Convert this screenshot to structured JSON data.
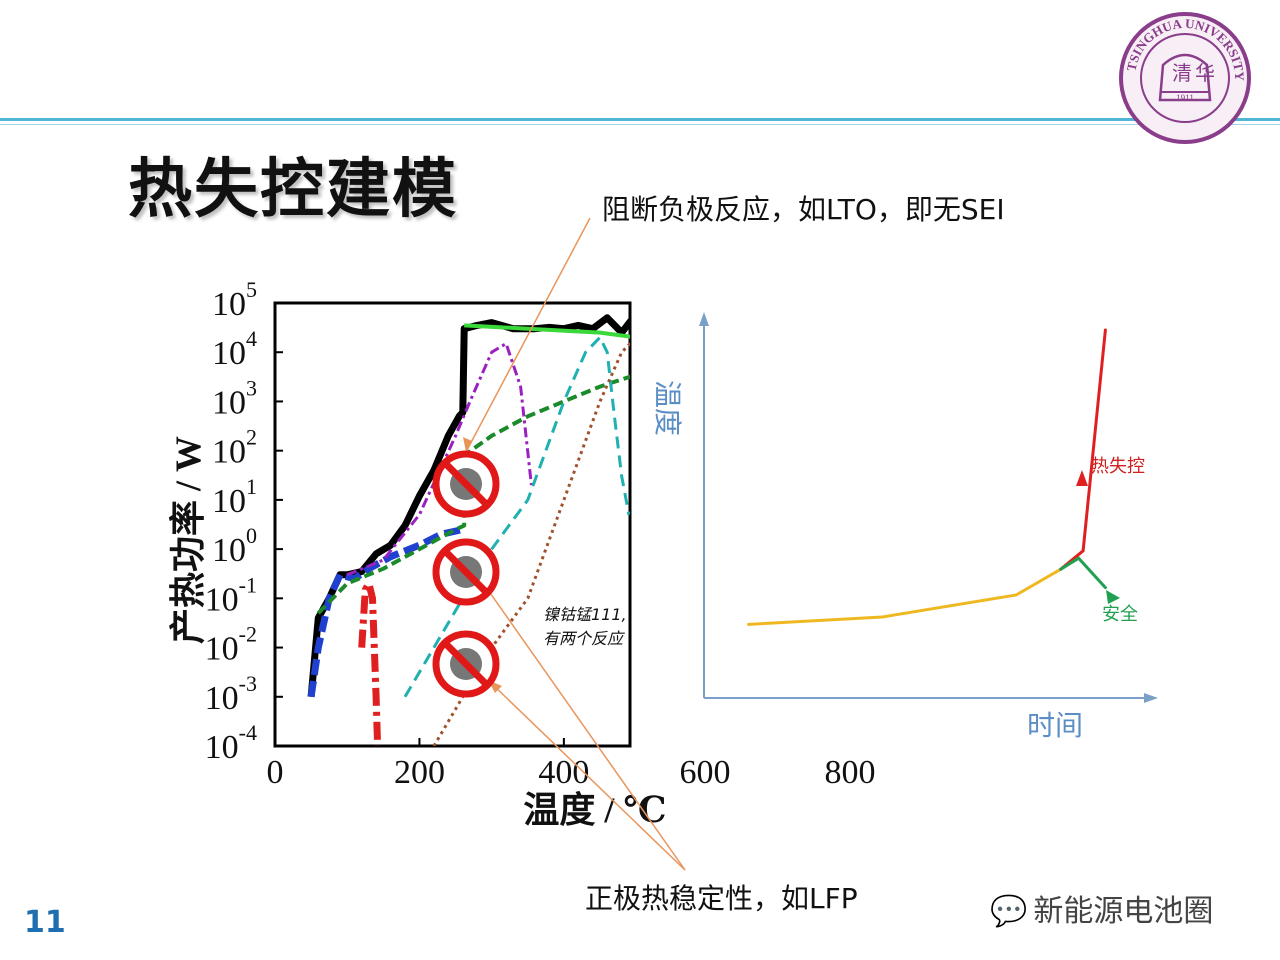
{
  "slide": {
    "title": "热失控建模",
    "page_number": "11",
    "callout_top": "阻断负极反应，如LTO，即无SEI",
    "callout_bottom": "正极热稳定性，如LFP",
    "watermark": "新能源电池圈",
    "logo": "TSINGHUA UNIVERSITY 1911"
  },
  "chart_data": [
    {
      "type": "line",
      "xlabel": "温度 / ℃",
      "ylabel": "产热功率 / W",
      "y_scale": "log",
      "xlim": [
        0,
        900
      ],
      "ylim": [
        0.0001,
        100000
      ],
      "x_ticks": [
        "0",
        "200",
        "400",
        "600",
        "800"
      ],
      "y_ticks": [
        "10^-4",
        "10^-3",
        "10^-2",
        "10^-1",
        "10^0",
        "10^1",
        "10^2",
        "10^3",
        "10^4",
        "10^5"
      ],
      "annotation": [
        "镍钴锰111,",
        "有两个反应"
      ],
      "series": [
        {
          "color": "#000000",
          "x": [
            50,
            60,
            75,
            90,
            100,
            120,
            140,
            160,
            180,
            200,
            220,
            240,
            255,
            260,
            262,
            280,
            300,
            330,
            360,
            380,
            400,
            420,
            440,
            460,
            480,
            500
          ],
          "y": [
            0.001,
            0.04,
            0.1,
            0.3,
            0.3,
            0.35,
            0.8,
            1.2,
            3,
            12,
            40,
            200,
            500,
            600,
            30000,
            35000,
            40000,
            30000,
            30000,
            32000,
            30000,
            35000,
            30000,
            50000,
            25000,
            60000
          ]
        },
        {
          "color": "#2040d0",
          "x": [
            50,
            60,
            75,
            90,
            110,
            130,
            160,
            200,
            230,
            260
          ],
          "y": [
            0.001,
            0.01,
            0.1,
            0.3,
            0.25,
            0.4,
            0.7,
            1.2,
            2,
            2.5
          ]
        },
        {
          "color": "#e02020",
          "x": [
            120,
            125,
            130,
            135,
            140,
            142
          ],
          "y": [
            0.01,
            0.15,
            0.2,
            0.1,
            0.001,
            0.0001
          ]
        },
        {
          "color": "#9a20c0",
          "x": [
            100,
            150,
            200,
            250,
            270,
            300,
            320,
            340,
            355
          ],
          "y": [
            0.3,
            0.6,
            5,
            200,
            1000,
            10000,
            15000,
            2000,
            20
          ]
        },
        {
          "color": "#1a8a2a",
          "x": [
            60,
            100,
            150,
            200,
            250,
            262,
            262,
            300,
            350,
            400,
            450,
            500
          ],
          "y": [
            0.05,
            0.2,
            0.4,
            1,
            2.5,
            3,
            80,
            200,
            500,
            1000,
            2000,
            3500
          ]
        },
        {
          "color": "#20b0b0",
          "x": [
            180,
            220,
            260,
            300,
            350,
            400,
            430,
            450,
            460,
            470,
            480,
            490
          ],
          "y": [
            0.001,
            0.01,
            0.1,
            1,
            10,
            1000,
            10000,
            20000,
            10000,
            500,
            30,
            5
          ]
        },
        {
          "color": "#a0522d",
          "x": [
            220,
            260,
            300,
            350,
            400,
            450,
            480,
            500
          ],
          "y": [
            0.0001,
            0.001,
            0.01,
            0.1,
            10,
            1000,
            10000,
            20000
          ]
        },
        {
          "color": "#3ad83a",
          "x": [
            262,
            350,
            450,
            500
          ],
          "y": [
            35000,
            30000,
            25000,
            20000
          ]
        }
      ]
    },
    {
      "type": "line",
      "xlabel": "时间",
      "ylabel": "温度",
      "series": [
        {
          "name": "热失控",
          "color": "#e02020",
          "x": [
            0.8,
            0.85,
            0.9
          ],
          "y": [
            0.35,
            0.4,
            1.0
          ]
        },
        {
          "name": "安全",
          "color": "#20a050",
          "x": [
            0.8,
            0.84,
            0.9
          ],
          "y": [
            0.35,
            0.38,
            0.3
          ]
        },
        {
          "color": "#f0b820",
          "x": [
            0.1,
            0.4,
            0.7,
            0.8
          ],
          "y": [
            0.2,
            0.22,
            0.28,
            0.35
          ]
        }
      ]
    }
  ]
}
